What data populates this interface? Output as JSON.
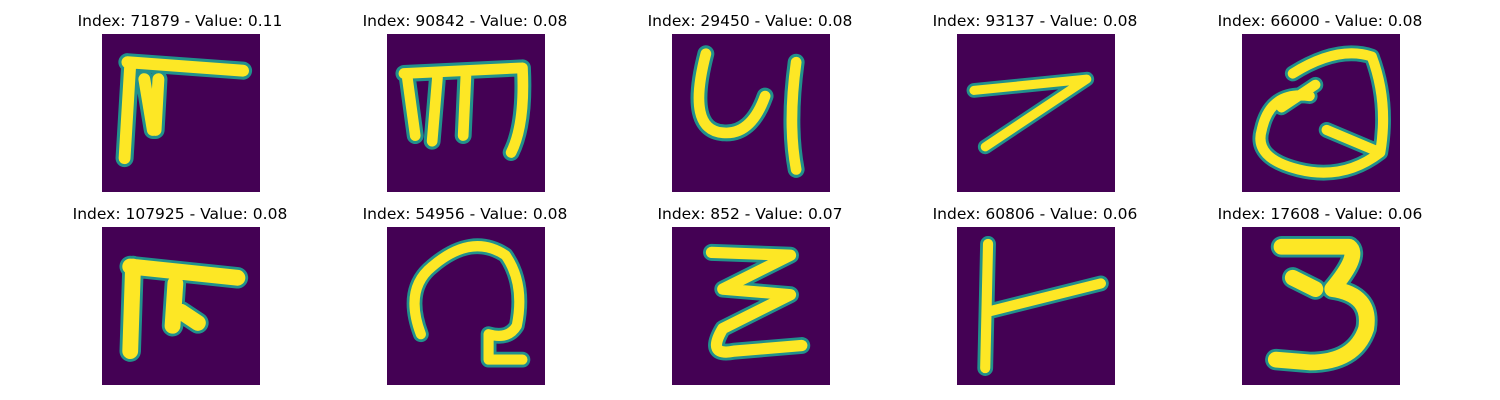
{
  "figure": {
    "panels": [
      {
        "title": "Index: 71879 - Value: 0.11",
        "glyph": "handwritten-character-f-like"
      },
      {
        "title": "Index: 90842 - Value: 0.08",
        "glyph": "handwritten-character-m-like"
      },
      {
        "title": "Index: 29450 - Value: 0.08",
        "glyph": "handwritten-character-y-like"
      },
      {
        "title": "Index: 93137 - Value: 0.08",
        "glyph": "handwritten-character-7-like"
      },
      {
        "title": "Index: 66000 - Value: 0.08",
        "glyph": "handwritten-character-q-like"
      },
      {
        "title": "Index: 107925 - Value: 0.08",
        "glyph": "handwritten-character-f-like"
      },
      {
        "title": "Index: 54956 - Value: 0.08",
        "glyph": "handwritten-character-g-like"
      },
      {
        "title": "Index: 852 - Value: 0.07",
        "glyph": "handwritten-character-z-like"
      },
      {
        "title": "Index: 60806 - Value: 0.06",
        "glyph": "handwritten-character-t-like"
      },
      {
        "title": "Index: 17608 - Value: 0.06",
        "glyph": "handwritten-character-3"
      }
    ],
    "colors": {
      "background": "#440154",
      "stroke": "#fde725",
      "edge": "#21918c"
    }
  }
}
